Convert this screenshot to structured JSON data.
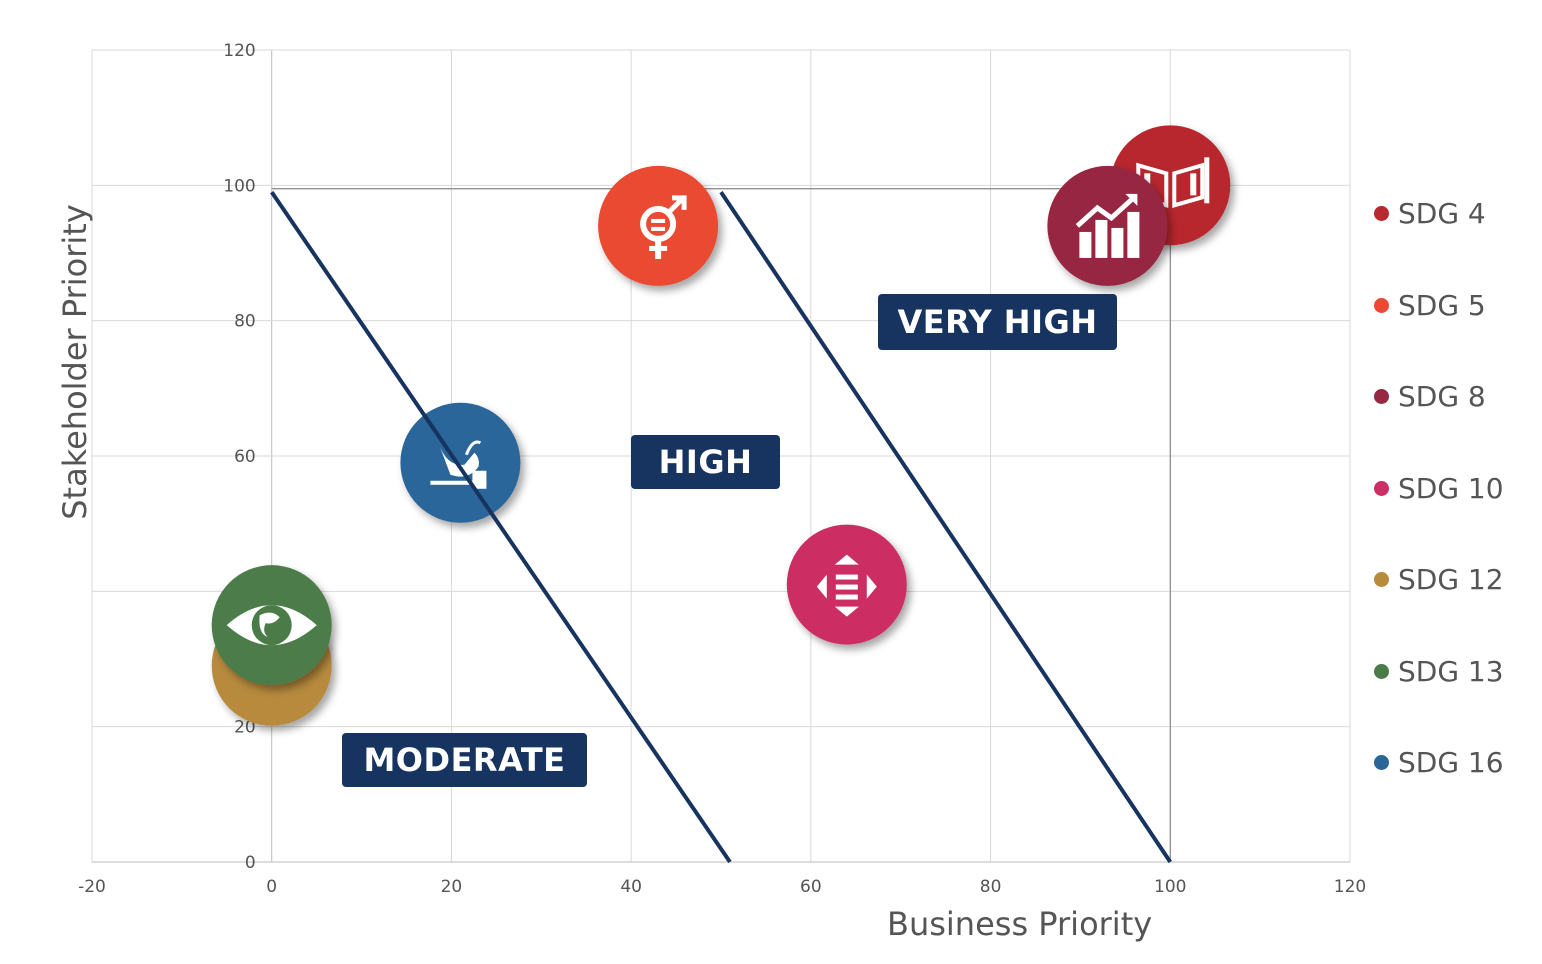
{
  "chart_data": {
    "type": "scatter",
    "xlabel": "Business Priority",
    "ylabel": "Stakeholder Priority",
    "xlim": [
      -20,
      120
    ],
    "ylim": [
      0,
      120
    ],
    "xticks": [
      "-20",
      "0",
      "20",
      "40",
      "60",
      "80",
      "100",
      "120"
    ],
    "yticks": [
      "0",
      "20",
      "40",
      "60",
      "80",
      "100",
      "120"
    ],
    "grid": true,
    "legend_placement": "right",
    "series": [
      {
        "name": "SDG 4",
        "x": 100,
        "y": 100,
        "color": "#b8282f",
        "icon": "book-pencil-icon"
      },
      {
        "name": "SDG 5",
        "x": 43,
        "y": 94,
        "color": "#ea4a31",
        "icon": "gender-equality-icon"
      },
      {
        "name": "SDG 8",
        "x": 93,
        "y": 94,
        "color": "#962843",
        "icon": "growth-chart-icon"
      },
      {
        "name": "SDG 10",
        "x": 64,
        "y": 41,
        "color": "#cc2f64",
        "icon": "reduced-inequality-icon"
      },
      {
        "name": "SDG 12",
        "x": 0,
        "y": 29,
        "color": "#b78a3c",
        "icon": "infinity-icon"
      },
      {
        "name": "SDG 13",
        "x": 0,
        "y": 35,
        "color": "#4b7c48",
        "icon": "eye-globe-icon"
      },
      {
        "name": "SDG 16",
        "x": 21,
        "y": 59,
        "color": "#2b6699",
        "icon": "dove-gavel-icon"
      }
    ],
    "draw_order": [
      "SDG 16",
      "SDG 12",
      "SDG 13",
      "SDG 10",
      "SDG 5",
      "SDG 4",
      "SDG 8"
    ],
    "boundary_lines": [
      {
        "from": [
          0,
          99
        ],
        "to": [
          51,
          0
        ]
      },
      {
        "from": [
          50,
          99
        ],
        "to": [
          100,
          0
        ]
      }
    ],
    "reference_box": {
      "x_max": 100,
      "y_max": 99.5
    },
    "zones": [
      "MODERATE",
      "HIGH",
      "VERY HIGH"
    ],
    "line_color": "#17335f"
  }
}
